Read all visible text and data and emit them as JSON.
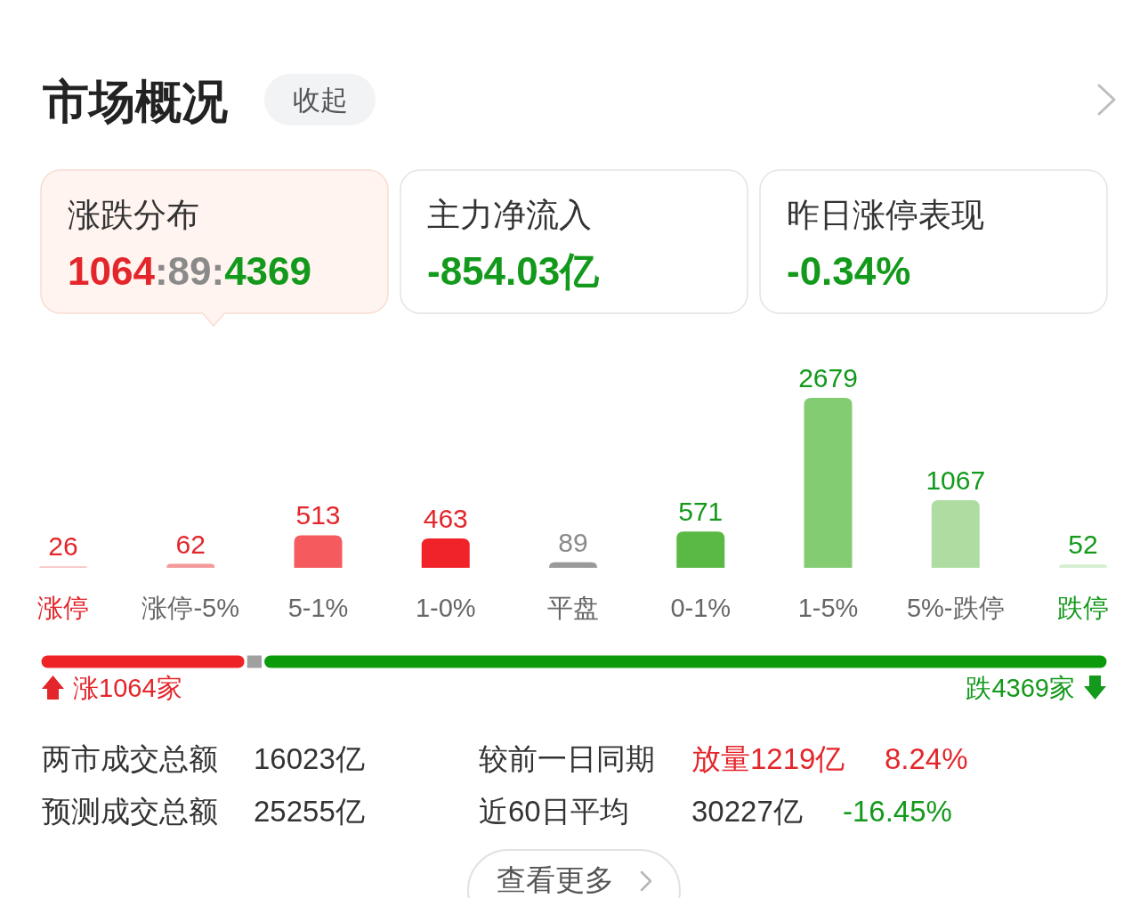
{
  "chart_data": [
    {
      "type": "other",
      "title": "市场概况",
      "annotations": [
        "收起",
        "涨跌分布",
        "1064:89:4369",
        "主力净流入",
        "-854.03亿",
        "昨日涨停表现",
        "-0.34%"
      ]
    },
    {
      "type": "bar",
      "categories": [
        "涨停",
        "涨停-5%",
        "5-1%",
        "1-0%",
        "平盘",
        "0-1%",
        "1-5%",
        "5%-跌停",
        "跌停"
      ],
      "values": [
        26,
        62,
        513,
        463,
        89,
        571,
        2679,
        1067,
        52
      ],
      "colors": [
        "#f9c2c4",
        "#f49a9b",
        "#f45a5e",
        "#ef2328",
        "#9a9a9a",
        "#5ab845",
        "#84cc72",
        "#afdca1",
        "#d6efd0"
      ],
      "data_labels": true
    },
    {
      "type": "bar",
      "orientation": "horizontal",
      "stacked": true,
      "categories": [
        null
      ],
      "series": [
        {
          "color": "#ee2326",
          "values": [
            1064
          ],
          "value_labels": [
            "涨1064家"
          ]
        },
        {
          "color": "#a0a0a0",
          "values": [
            89
          ],
          "value_labels": [
            null
          ]
        },
        {
          "color": "#0a9a0a",
          "values": [
            4369
          ],
          "value_labels": [
            "跌4369家"
          ]
        }
      ]
    },
    {
      "type": "other",
      "annotations": [
        "两市成交总额",
        "16023亿",
        "较前一日同期",
        "放量1219亿",
        "8.24%",
        "预测成交总额",
        "25255亿",
        "近60日平均",
        "30227亿",
        "-16.45%",
        "查看更多"
      ]
    }
  ]
}
